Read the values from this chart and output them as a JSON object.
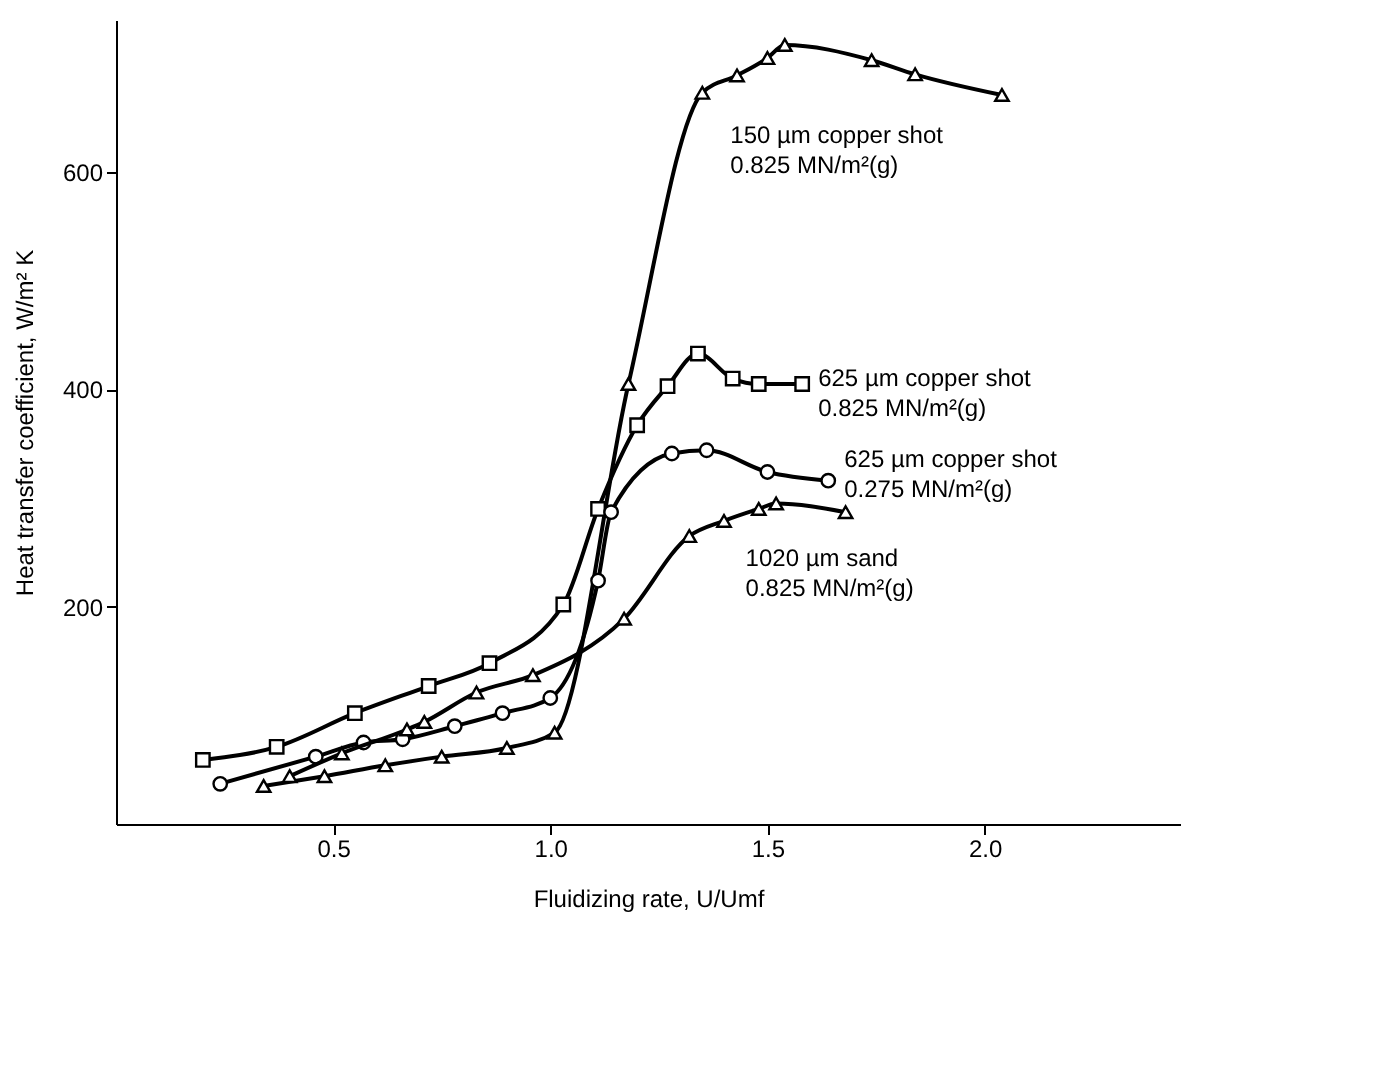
{
  "chart_data": {
    "type": "line",
    "xlabel": "Fluidizing rate, U/Umf",
    "ylabel": "Heat transfer coefficient, W/m² K",
    "xlim": [
      0,
      2.45
    ],
    "ylim": [
      0,
      740
    ],
    "xticks": [
      0.5,
      {
        "value": 1,
        "label": "1.0"
      },
      1.5,
      {
        "value": 2,
        "label": "2.0"
      }
    ],
    "yticks": [
      200,
      400,
      600
    ],
    "grid": false,
    "line_style": "solid",
    "series": [
      {
        "name": "150 µm copper shot\n0.825 MN/m²(g)",
        "color": "#000000",
        "marker": "triangle",
        "x": [
          0.34,
          0.48,
          0.62,
          0.75,
          0.9,
          1.01,
          1.18,
          1.35,
          1.43,
          1.5,
          1.54,
          1.74,
          1.84,
          2.04
        ],
        "values": [
          35,
          44,
          54,
          62,
          70,
          84,
          405,
          673,
          689,
          705,
          717,
          703,
          690,
          671
        ]
      },
      {
        "name": "625 µm copper shot\n0.825 MN/m²(g)",
        "color": "#000000",
        "marker": "square",
        "x": [
          0.2,
          0.37,
          0.55,
          0.72,
          0.86,
          1.03,
          1.11,
          1.2,
          1.27,
          1.34,
          1.42,
          1.48,
          1.58
        ],
        "values": [
          59,
          71,
          102,
          127,
          148,
          202,
          290,
          367,
          403,
          433,
          410,
          405,
          405
        ]
      },
      {
        "name": "625 µm copper shot\n0.275 MN/m²(g)",
        "color": "#000000",
        "marker": "circle",
        "x": [
          0.24,
          0.46,
          0.57,
          0.66,
          0.78,
          0.89,
          1.0,
          1.11,
          1.14,
          1.28,
          1.36,
          1.5,
          1.64
        ],
        "values": [
          37,
          62,
          75,
          78,
          90,
          102,
          116,
          224,
          287,
          341,
          344,
          324,
          316
        ]
      },
      {
        "name": "1020 µm sand\n0.825 MN/m²(g)",
        "color": "#000000",
        "marker": "triangle",
        "x": [
          0.4,
          0.52,
          0.67,
          0.71,
          0.83,
          0.96,
          1.17,
          1.32,
          1.4,
          1.48,
          1.52,
          1.68
        ],
        "values": [
          44,
          65,
          87,
          94,
          121,
          137,
          189,
          265,
          279,
          290,
          295,
          287
        ]
      }
    ]
  }
}
